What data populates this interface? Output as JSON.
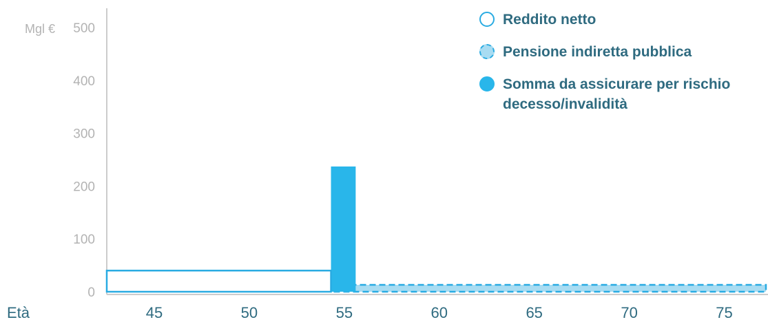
{
  "chart_data": {
    "type": "bar",
    "unit_label": "Mgl €",
    "xaxis_label": "Età",
    "x_ticks": [
      "45",
      "50",
      "55",
      "60",
      "65",
      "70",
      "75"
    ],
    "y_ticks": [
      "0",
      "100",
      "200",
      "300",
      "400",
      "500"
    ],
    "xlim": [
      42.5,
      77.3
    ],
    "ylim": [
      0,
      500
    ],
    "series": [
      {
        "name": "Reddito netto",
        "style": "outline",
        "color": "#29abe2",
        "segments": [
          {
            "x_start": 42.5,
            "x_end": 54.3,
            "value": 40
          }
        ]
      },
      {
        "name": "Pensione indiretta pubblica",
        "style": "dashed",
        "color": "#29abe2",
        "fill": "#a8dcf2",
        "segments": [
          {
            "x_start": 54.3,
            "x_end": 77.3,
            "value": 13
          }
        ]
      },
      {
        "name": "Somma da assicurare per rischio decesso/invalidità",
        "style": "solid",
        "color": "#29b6ea",
        "segments": [
          {
            "x_start": 54.3,
            "x_end": 55.6,
            "value": 237
          }
        ]
      }
    ]
  },
  "legend": [
    {
      "label": "Reddito netto",
      "marker": "outline"
    },
    {
      "label": "Pensione indiretta pubblica",
      "marker": "dashed"
    },
    {
      "label": "Somma da assicurare per rischio decesso/invalidità",
      "marker": "solid"
    }
  ],
  "colors": {
    "accent": "#29abe2",
    "text": "#2f6b80",
    "axis": "#cccccc",
    "tick": "#b3b3b3"
  }
}
